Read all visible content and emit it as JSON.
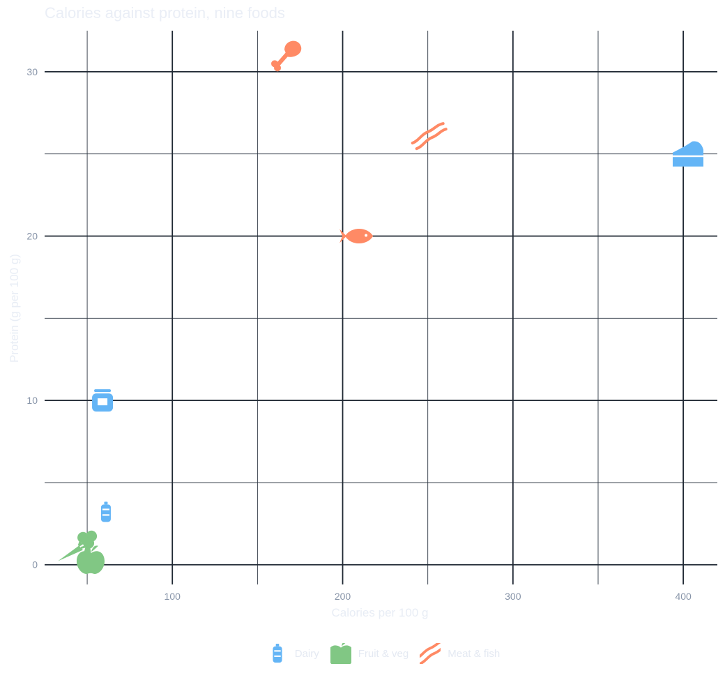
{
  "chart_data": {
    "type": "scatter",
    "title": "Calories against protein, nine foods",
    "xlabel": "Calories per 100 g",
    "ylabel": "Protein (g per 100 g)",
    "xlim": [
      25,
      420
    ],
    "ylim": [
      -1.2,
      32.5
    ],
    "x_ticks": [
      100,
      200,
      300,
      400
    ],
    "y_ticks": [
      0,
      10,
      20,
      30
    ],
    "grid": true,
    "legend_position": "bottom",
    "series": [
      {
        "name": "Dairy",
        "color": "#64b5f6",
        "icon": "milk-bottle-icon",
        "points": [
          {
            "x": 402,
            "y": 25,
            "icon": "cheese-icon"
          },
          {
            "x": 59,
            "y": 10,
            "icon": "yogurt-jar-icon"
          },
          {
            "x": 61,
            "y": 3.2,
            "icon": "milk-bottle-icon"
          }
        ]
      },
      {
        "name": "Fruit & veg",
        "color": "#81c784",
        "icon": "apple-icon",
        "points": [
          {
            "x": 52,
            "y": 0.3,
            "icon": "apple-icon"
          },
          {
            "x": 41,
            "y": 0.9,
            "icon": "carrot-icon"
          },
          {
            "x": 50,
            "y": 1.4,
            "icon": "broccoli-icon"
          }
        ]
      },
      {
        "name": "Meat & fish",
        "color": "#ff8a65",
        "icon": "bacon-icon",
        "points": [
          {
            "x": 165,
            "y": 31,
            "icon": "chicken-leg-icon"
          },
          {
            "x": 250,
            "y": 26,
            "icon": "bacon-icon"
          },
          {
            "x": 208,
            "y": 20,
            "icon": "fish-icon"
          }
        ]
      }
    ]
  }
}
